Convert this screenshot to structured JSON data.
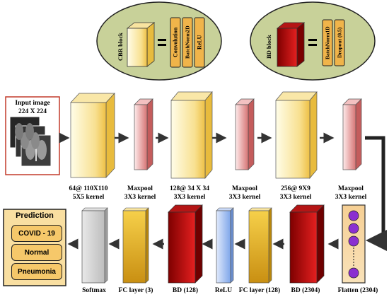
{
  "legend": {
    "cbr": {
      "title": "CBR block",
      "parts": [
        "Convolution",
        "BatchNorm2D",
        "ReLU"
      ]
    },
    "bd": {
      "title": "BD block",
      "parts": [
        "BatchNorm1D",
        "Dropout (0.5)"
      ]
    },
    "equals": "="
  },
  "input": {
    "title": "Input image",
    "size": "224 X 224"
  },
  "row1": [
    {
      "line1": "64@ 110X110",
      "line2": "5X5 kernel"
    },
    {
      "line1": "Maxpool",
      "line2": "3X3 kernel"
    },
    {
      "line1": "128@ 34 X 34",
      "line2": "3X3 kernel"
    },
    {
      "line1": "Maxpool",
      "line2": "3X3 kernel"
    },
    {
      "line1": "256@ 9X9",
      "line2": "3X3 kernel"
    },
    {
      "line1": "Maxpool",
      "line2": "3X3 kernel"
    }
  ],
  "row2": {
    "flatten": "Flatten (2304)",
    "bd2304": "BD (2304)",
    "fc128": "FC layer (128)",
    "relu": "ReLU",
    "bd128": "BD (128)",
    "fc3": "FC layer (3)",
    "softmax": "Softmax"
  },
  "prediction": {
    "title": "Prediction",
    "classes": [
      "COVID - 19",
      "Normal",
      "Pneumonia"
    ]
  },
  "colors": {
    "cbr_light": "#fffbe0",
    "cbr_dark": "#f2c84b",
    "pool_light": "#fde4e4",
    "pool_dark": "#d98080",
    "bd_dark": "#8e0000",
    "bd_light": "#e31a1a",
    "relu": "#9dbcf0",
    "ellipse": "#c8d199",
    "pred_box": "#f9dfa1",
    "circle": "#8b2fd0"
  }
}
